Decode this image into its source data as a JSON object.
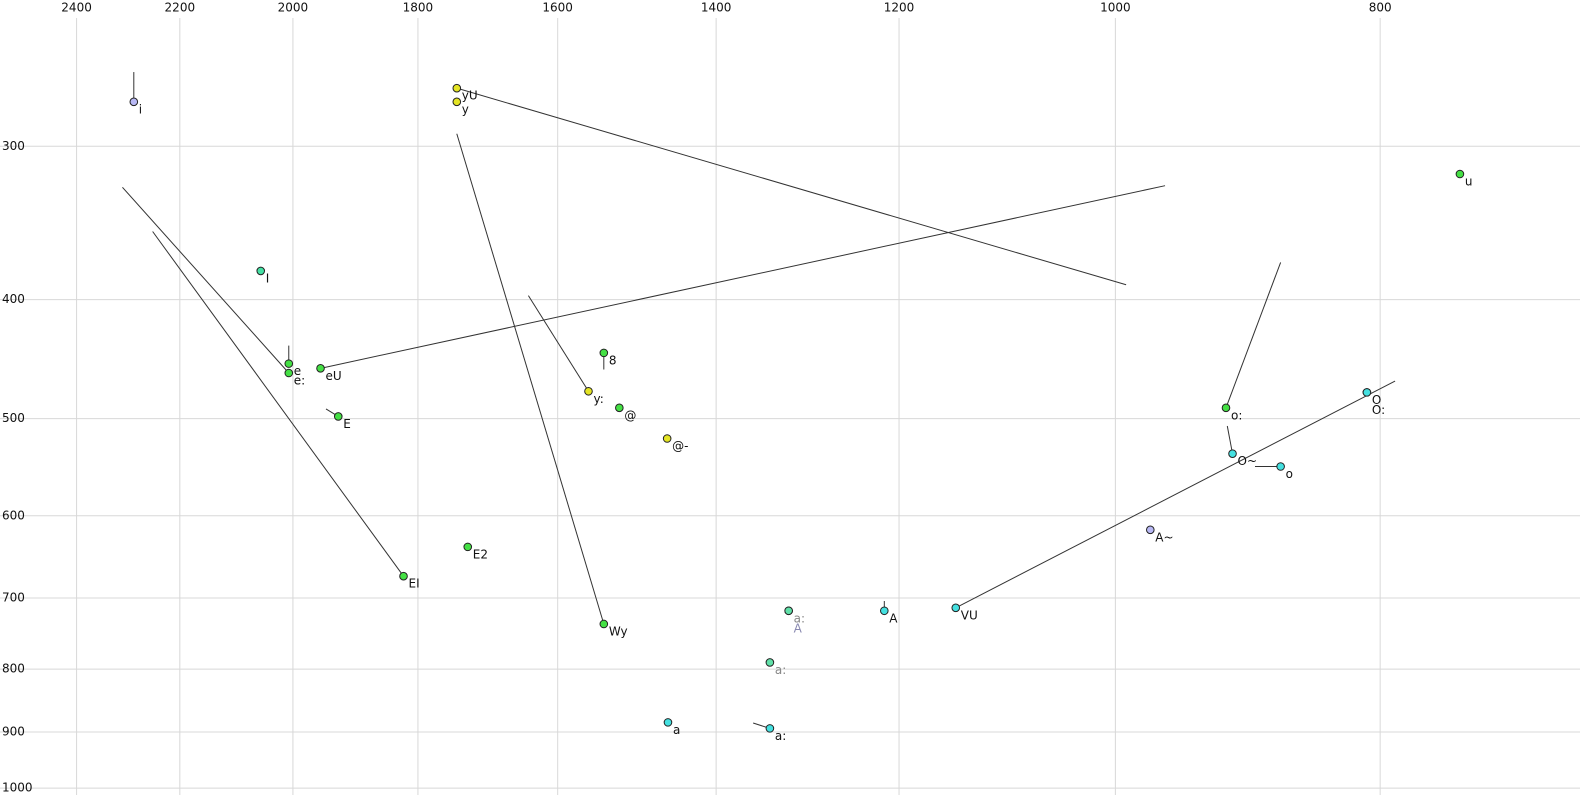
{
  "chart_data": {
    "type": "scatter",
    "xscale": "log",
    "yscale": "log",
    "grid": true,
    "xlim": [
      2560,
      676
    ],
    "ylim": [
      228,
      1013
    ],
    "xticks": [
      2400,
      2200,
      2000,
      1800,
      1600,
      1400,
      1200,
      1000,
      800
    ],
    "yticks": [
      300,
      400,
      500,
      600,
      700,
      800,
      900,
      1000
    ],
    "points": [
      {
        "label": "i",
        "x": 2287,
        "y": 276,
        "color": "#b8b8f4",
        "end": [
          2287,
          261
        ]
      },
      {
        "label": "yU",
        "x": 1742,
        "y": 269,
        "color": "#e4e424",
        "end": [
          991,
          389
        ]
      },
      {
        "label": "y",
        "x": 1742,
        "y": 276,
        "color": "#e4e424"
      },
      {
        "label": "u",
        "x": 748,
        "y": 316,
        "color": "#44e044"
      },
      {
        "label": "I",
        "x": 2055,
        "y": 379,
        "color": "#44e0a4"
      },
      {
        "label": "e",
        "x": 2007,
        "y": 451,
        "color": "#44e044",
        "end": [
          2007,
          436
        ]
      },
      {
        "label": "e:",
        "x": 2007,
        "y": 459,
        "color": "#44e044",
        "end": [
          2309,
          324
        ]
      },
      {
        "label": "eU",
        "x": 1954,
        "y": 455,
        "color": "#44e044",
        "end": [
          959,
          323
        ]
      },
      {
        "label": "E",
        "x": 1925,
        "y": 498,
        "color": "#44e044",
        "end": [
          1945,
          491
        ]
      },
      {
        "label": "EI",
        "x": 1822,
        "y": 672,
        "color": "#44e044",
        "end": [
          2251,
          352
        ]
      },
      {
        "label": "E2",
        "x": 1726,
        "y": 636,
        "color": "#44e044"
      },
      {
        "label": "Wy",
        "x": 1539,
        "y": 735,
        "color": "#44e044",
        "end": [
          1742,
          293
        ]
      },
      {
        "label": "y:",
        "x": 1559,
        "y": 475,
        "color": "#e4e424",
        "end": [
          1640,
          397
        ]
      },
      {
        "label": "8",
        "x": 1539,
        "y": 442,
        "color": "#44e044",
        "end": [
          1539,
          456
        ]
      },
      {
        "label": "@",
        "x": 1519,
        "y": 490,
        "color": "#44e044"
      },
      {
        "label": "@-",
        "x": 1459,
        "y": 519,
        "color": "#e4e424"
      },
      {
        "label": "a:",
        "x": 1317,
        "y": 717,
        "color": "#60e0a8",
        "label_color": "#888888"
      },
      {
        "label": "A",
        "x": 1317,
        "y": 717,
        "color": "#60e0a8",
        "label_color": "#8888b0",
        "label_row": 1
      },
      {
        "label": "A",
        "x": 1215,
        "y": 717,
        "color": "#44e0e0",
        "end": [
          1215,
          704
        ]
      },
      {
        "label": "VU",
        "x": 1144,
        "y": 713,
        "color": "#44e0e0",
        "end": [
          790,
          466
        ]
      },
      {
        "label": "a:",
        "x": 1338,
        "y": 790,
        "color": "#60e0a8",
        "label_color": "#888888"
      },
      {
        "label": "a",
        "x": 1458,
        "y": 884,
        "color": "#44e0e0"
      },
      {
        "label": "a:",
        "x": 1338,
        "y": 894,
        "color": "#44e0e0",
        "end": [
          1357,
          885
        ]
      },
      {
        "label": "A~",
        "x": 971,
        "y": 616,
        "color": "#b8b8f4"
      },
      {
        "label": "o:",
        "x": 911,
        "y": 490,
        "color": "#44e044",
        "end": [
          870,
          373
        ]
      },
      {
        "label": "O~",
        "x": 906,
        "y": 534,
        "color": "#44e0e0",
        "end": [
          910,
          507
        ]
      },
      {
        "label": "o",
        "x": 870,
        "y": 547,
        "color": "#44e0e0",
        "end": [
          889,
          547
        ]
      },
      {
        "label": "O",
        "x": 809,
        "y": 476,
        "color": "#44e0e0"
      },
      {
        "label": "O:",
        "x": 809,
        "y": 476,
        "color": "#44e0e0",
        "label_row": 1
      }
    ]
  }
}
